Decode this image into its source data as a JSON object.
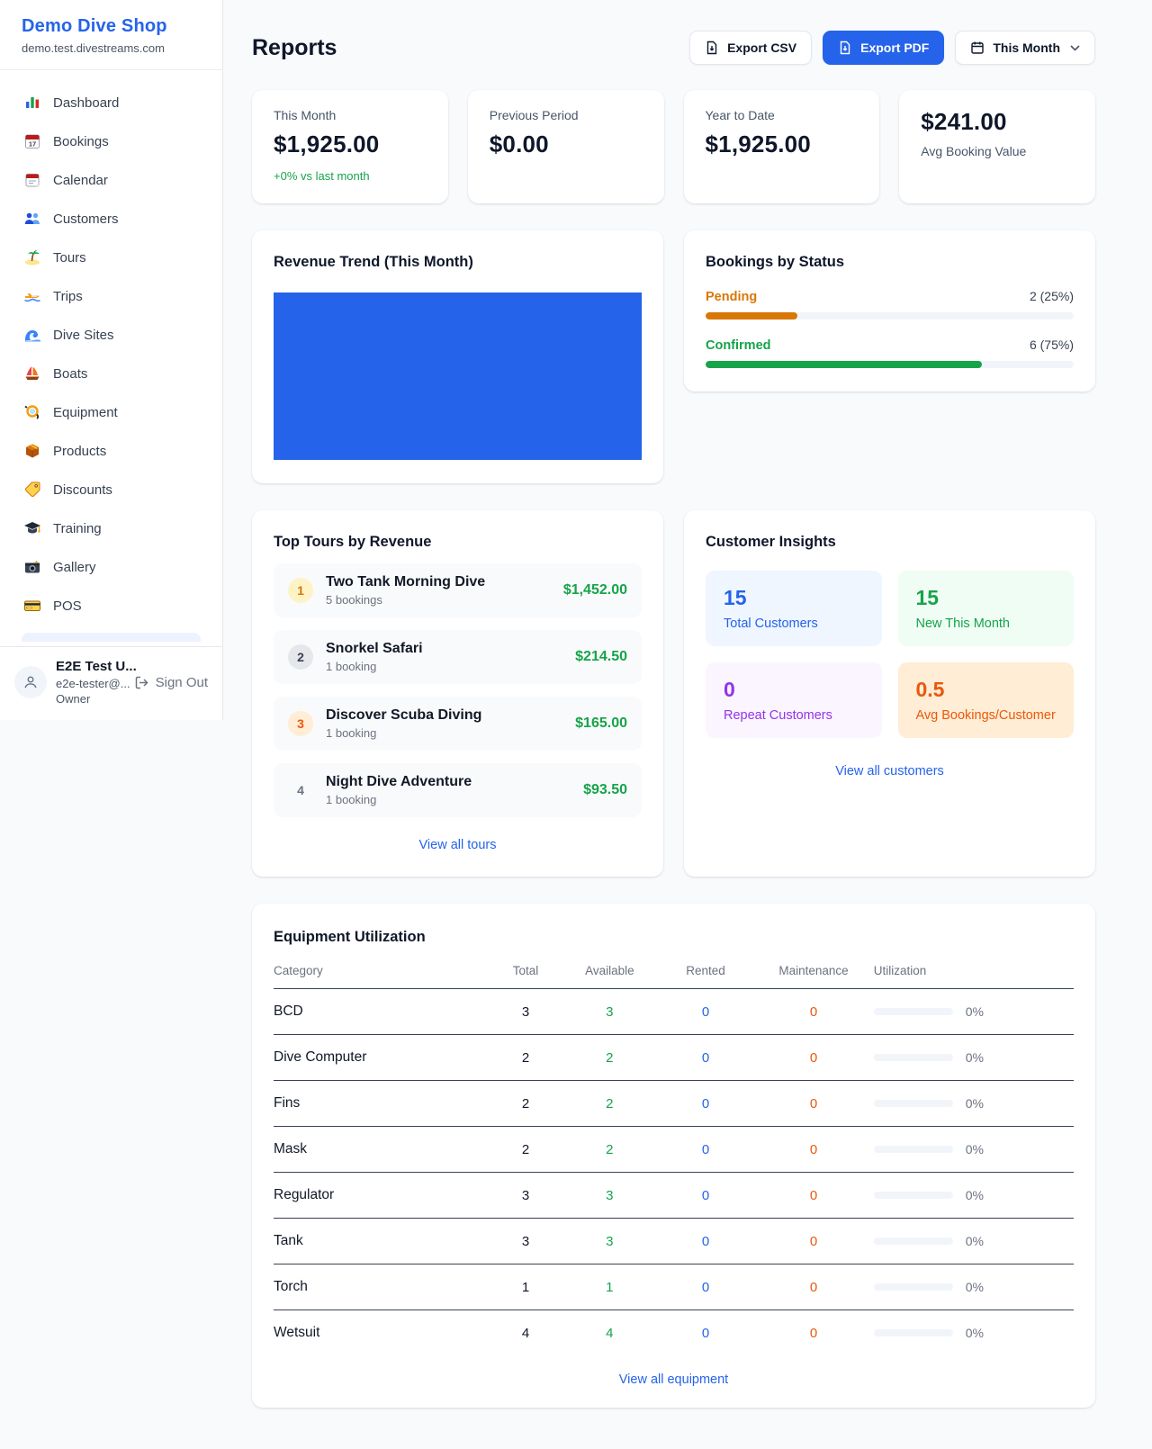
{
  "colors": {
    "brand_blue": "#2563eb",
    "success_green": "#16a34a",
    "pending_orange": "#d97706",
    "maintenance_orange": "#ea580c",
    "repeat_purple": "#9333ea",
    "link_blue": "#2563eb",
    "trend_bar_blue": "#2563eb"
  },
  "sidebar": {
    "brand": {
      "name": "Demo Dive Shop",
      "domain": "demo.test.divestreams.com"
    },
    "items": [
      {
        "icon": "bar-chart",
        "label": "Dashboard"
      },
      {
        "icon": "calendar-date",
        "label": "Bookings"
      },
      {
        "icon": "tear-off-calendar",
        "label": "Calendar"
      },
      {
        "icon": "people",
        "label": "Customers"
      },
      {
        "icon": "palm-island",
        "label": "Tours"
      },
      {
        "icon": "speedboat",
        "label": "Trips"
      },
      {
        "icon": "wave",
        "label": "Dive Sites"
      },
      {
        "icon": "sailboat",
        "label": "Boats"
      },
      {
        "icon": "dive-mask",
        "label": "Equipment"
      },
      {
        "icon": "package",
        "label": "Products"
      },
      {
        "icon": "tag",
        "label": "Discounts"
      },
      {
        "icon": "graduation-cap",
        "label": "Training"
      },
      {
        "icon": "camera",
        "label": "Gallery"
      },
      {
        "icon": "credit-card",
        "label": "POS"
      }
    ],
    "user": {
      "name": "E2E Test U...",
      "email": "e2e-tester@...",
      "role": "Owner",
      "sign_out_label": "Sign Out"
    }
  },
  "header": {
    "title": "Reports",
    "export_csv_label": "Export CSV",
    "export_pdf_label": "Export PDF",
    "period_label": "This Month"
  },
  "stats": [
    {
      "label": "This Month",
      "value": "$1,925.00",
      "delta": "+0% vs last month"
    },
    {
      "label": "Previous Period",
      "value": "$0.00"
    },
    {
      "label": "Year to Date",
      "value": "$1,925.00"
    },
    {
      "label": "Avg Booking Value",
      "value": "$241.00"
    }
  ],
  "revenue_trend": {
    "title": "Revenue Trend (This Month)"
  },
  "bookings_by_status": {
    "title": "Bookings by Status",
    "rows": [
      {
        "label": "Pending",
        "count_text": "2 (25%)",
        "pct": 25,
        "color": "#d97706"
      },
      {
        "label": "Confirmed",
        "count_text": "6 (75%)",
        "pct": 75,
        "color": "#16a34a"
      }
    ]
  },
  "top_tours": {
    "title": "Top Tours by Revenue",
    "rows": [
      {
        "rank": "1",
        "name": "Two Tank Morning Dive",
        "bookings": "5 bookings",
        "amount": "$1,452.00"
      },
      {
        "rank": "2",
        "name": "Snorkel Safari",
        "bookings": "1 booking",
        "amount": "$214.50"
      },
      {
        "rank": "3",
        "name": "Discover Scuba Diving",
        "bookings": "1 booking",
        "amount": "$165.00"
      },
      {
        "rank": "4",
        "name": "Night Dive Adventure",
        "bookings": "1 booking",
        "amount": "$93.50"
      }
    ],
    "view_all_label": "View all tours"
  },
  "customer_insights": {
    "title": "Customer Insights",
    "tiles": [
      {
        "value": "15",
        "label": "Total Customers"
      },
      {
        "value": "15",
        "label": "New This Month"
      },
      {
        "value": "0",
        "label": "Repeat Customers"
      },
      {
        "value": "0.5",
        "label": "Avg Bookings/Customer"
      }
    ],
    "view_all_label": "View all customers"
  },
  "equipment": {
    "title": "Equipment Utilization",
    "columns": [
      "Category",
      "Total",
      "Available",
      "Rented",
      "Maintenance",
      "Utilization"
    ],
    "rows": [
      {
        "category": "BCD",
        "total": "3",
        "available": "3",
        "rented": "0",
        "maintenance": "0",
        "utilization": "0%"
      },
      {
        "category": "Dive Computer",
        "total": "2",
        "available": "2",
        "rented": "0",
        "maintenance": "0",
        "utilization": "0%"
      },
      {
        "category": "Fins",
        "total": "2",
        "available": "2",
        "rented": "0",
        "maintenance": "0",
        "utilization": "0%"
      },
      {
        "category": "Mask",
        "total": "2",
        "available": "2",
        "rented": "0",
        "maintenance": "0",
        "utilization": "0%"
      },
      {
        "category": "Regulator",
        "total": "3",
        "available": "3",
        "rented": "0",
        "maintenance": "0",
        "utilization": "0%"
      },
      {
        "category": "Tank",
        "total": "3",
        "available": "3",
        "rented": "0",
        "maintenance": "0",
        "utilization": "0%"
      },
      {
        "category": "Torch",
        "total": "1",
        "available": "1",
        "rented": "0",
        "maintenance": "0",
        "utilization": "0%"
      },
      {
        "category": "Wetsuit",
        "total": "4",
        "available": "4",
        "rented": "0",
        "maintenance": "0",
        "utilization": "0%"
      }
    ],
    "view_all_label": "View all equipment"
  },
  "chart_data": [
    {
      "type": "bar",
      "title": "Revenue Trend (This Month)",
      "categories": [
        "This Month"
      ],
      "values": [
        1925.0
      ],
      "xlabel": "",
      "ylabel": "",
      "legend": "none",
      "grid": false,
      "note": "single solid blue bar filling entire plot area, no axes or tick labels"
    },
    {
      "type": "bar",
      "title": "Bookings by Status",
      "categories": [
        "Pending",
        "Confirmed"
      ],
      "values": [
        2,
        6
      ],
      "value_labels": [
        "2 (25%)",
        "6 (75%)"
      ],
      "percentages": [
        25,
        75
      ],
      "colors": [
        "#d97706",
        "#16a34a"
      ],
      "layout": "horizontal progress bars"
    }
  ]
}
